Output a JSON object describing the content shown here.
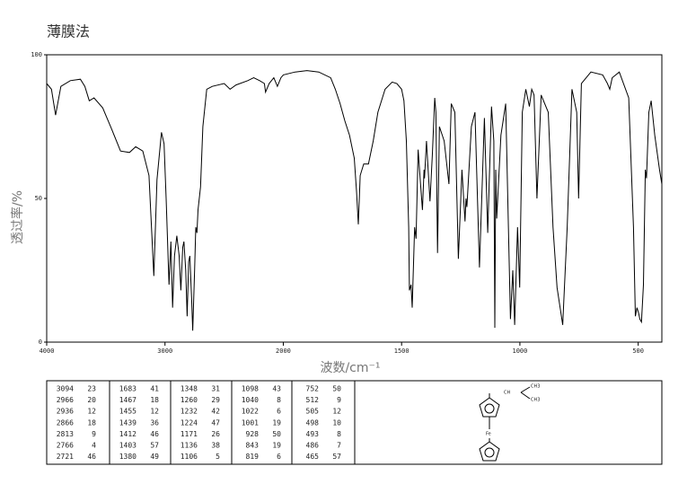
{
  "chart_data": {
    "type": "line",
    "title": "薄膜法",
    "ylabel": "透过率/%",
    "xlabel": "波数/cm⁻¹",
    "xlim": [
      4000,
      400
    ],
    "ylim": [
      0,
      100
    ],
    "xscale_break": 2000,
    "xticks": [
      4000,
      3000,
      2000,
      1500,
      1000,
      500
    ],
    "yticks": [
      0,
      50,
      100
    ],
    "color": "#000000",
    "x": [
      4000,
      3960,
      3925,
      3880,
      3800,
      3715,
      3677,
      3640,
      3600,
      3526,
      3450,
      3376,
      3300,
      3248,
      3188,
      3135,
      3094,
      3068,
      3030,
      3008,
      2990,
      2966,
      2950,
      2936,
      2920,
      2900,
      2880,
      2866,
      2850,
      2840,
      2825,
      2813,
      2800,
      2790,
      2775,
      2766,
      2750,
      2740,
      2730,
      2721,
      2700,
      2680,
      2647,
      2600,
      2500,
      2450,
      2400,
      2300,
      2250,
      2200,
      2160,
      2150,
      2120,
      2080,
      2050,
      2020,
      2000,
      1950,
      1900,
      1850,
      1800,
      1780,
      1760,
      1740,
      1720,
      1700,
      1690,
      1683,
      1675,
      1660,
      1640,
      1620,
      1600,
      1570,
      1540,
      1520,
      1500,
      1490,
      1480,
      1470,
      1467,
      1460,
      1455,
      1445,
      1439,
      1430,
      1420,
      1412,
      1405,
      1403,
      1395,
      1380,
      1370,
      1360,
      1355,
      1348,
      1340,
      1320,
      1300,
      1290,
      1275,
      1260,
      1245,
      1232,
      1228,
      1224,
      1205,
      1190,
      1171,
      1150,
      1136,
      1120,
      1110,
      1106,
      1102,
      1098,
      1080,
      1060,
      1040,
      1030,
      1022,
      1010,
      1001,
      990,
      975,
      960,
      950,
      940,
      928,
      910,
      880,
      860,
      843,
      830,
      819,
      800,
      780,
      760,
      752,
      740,
      700,
      650,
      630,
      620,
      610,
      580,
      540,
      520,
      512,
      505,
      498,
      493,
      486,
      478,
      470,
      465,
      455,
      445,
      430,
      410,
      400
    ],
    "values": [
      90,
      88,
      79,
      89,
      91,
      91.5,
      89,
      84,
      85,
      81.5,
      74,
      66.5,
      66,
      68,
      66.5,
      58,
      23,
      56.5,
      73,
      69,
      50,
      20,
      35,
      12,
      30,
      37,
      30,
      18,
      33,
      35,
      25,
      9,
      28,
      30,
      15,
      4,
      25,
      40,
      38,
      46,
      54,
      75,
      88,
      89,
      90,
      88,
      89.5,
      91,
      92,
      91,
      90,
      87,
      90,
      92,
      89,
      92,
      93,
      94,
      94.5,
      94,
      92,
      88,
      83,
      77,
      72,
      64,
      52,
      41,
      58,
      62,
      62,
      70,
      80,
      88,
      90.5,
      90,
      88,
      84,
      70,
      40,
      18,
      20,
      12,
      40,
      36,
      67,
      55,
      46,
      60,
      57,
      70,
      49,
      65,
      85,
      80,
      31,
      75,
      70,
      55,
      83,
      80,
      29,
      60,
      42,
      50,
      47,
      75,
      80,
      26,
      78,
      38,
      82,
      70,
      5,
      60,
      43,
      72,
      83,
      8,
      25,
      6,
      40,
      19,
      80,
      88,
      82,
      88,
      86,
      50,
      86,
      80,
      40,
      19,
      12,
      6,
      40,
      88,
      80,
      50,
      90,
      94,
      93,
      90,
      88,
      92,
      94,
      85,
      40,
      9,
      12,
      10,
      8,
      7,
      20,
      60,
      57,
      80,
      84,
      72,
      60,
      55
    ]
  },
  "peak_table": [
    [
      [
        "3094",
        "23"
      ],
      [
        "2966",
        "20"
      ],
      [
        "2936",
        "12"
      ],
      [
        "2866",
        "18"
      ],
      [
        "2813",
        "9"
      ],
      [
        "2766",
        "4"
      ],
      [
        "2721",
        "46"
      ]
    ],
    [
      [
        "1683",
        "41"
      ],
      [
        "1467",
        "18"
      ],
      [
        "1455",
        "12"
      ],
      [
        "1439",
        "36"
      ],
      [
        "1412",
        "46"
      ],
      [
        "1403",
        "57"
      ],
      [
        "1380",
        "49"
      ]
    ],
    [
      [
        "1348",
        "31"
      ],
      [
        "1260",
        "29"
      ],
      [
        "1232",
        "42"
      ],
      [
        "1224",
        "47"
      ],
      [
        "1171",
        "26"
      ],
      [
        "1136",
        "38"
      ],
      [
        "1106",
        "5"
      ]
    ],
    [
      [
        "1098",
        "43"
      ],
      [
        "1040",
        "8"
      ],
      [
        "1022",
        "6"
      ],
      [
        "1001",
        "19"
      ],
      [
        "928",
        "50"
      ],
      [
        "843",
        "19"
      ],
      [
        "819",
        "6"
      ]
    ],
    [
      [
        "752",
        "50"
      ],
      [
        "512",
        "9"
      ],
      [
        "505",
        "12"
      ],
      [
        "498",
        "10"
      ],
      [
        "493",
        "8"
      ],
      [
        "486",
        "7"
      ],
      [
        "465",
        "57"
      ]
    ]
  ],
  "structure": {
    "labels": [
      "CH",
      "CH3",
      "CH3",
      "Fe"
    ]
  }
}
